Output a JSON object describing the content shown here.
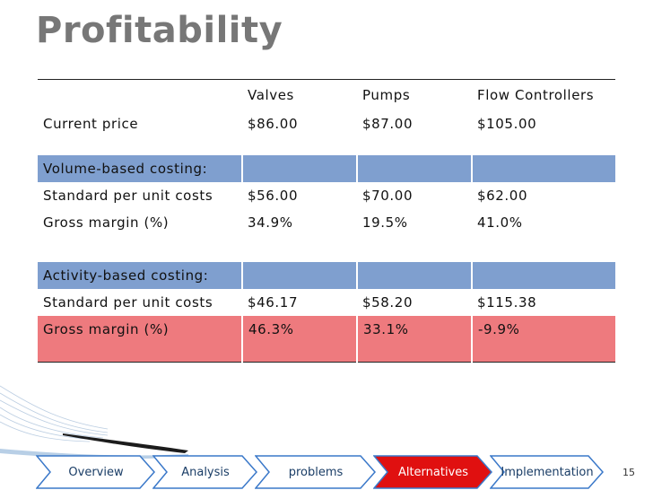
{
  "slide": {
    "title": "Profitability",
    "page_number": "15"
  },
  "table": {
    "header": [
      "",
      "Valves",
      "Pumps",
      "Flow Controllers"
    ],
    "current_price": [
      "Current price",
      "$86.00",
      "$87.00",
      "$105.00"
    ],
    "volume_section": [
      "Volume-based costing:",
      "",
      "",
      ""
    ],
    "volume_costs": [
      "Standard per unit costs",
      "$56.00",
      "$70.00",
      "$62.00"
    ],
    "volume_margin": [
      "Gross margin (%)",
      "34.9%",
      "19.5%",
      "41.0%"
    ],
    "activity_section": [
      "Activity-based costing:",
      "",
      "",
      ""
    ],
    "activity_costs": [
      "Standard per unit costs",
      "$46.17",
      "$58.20",
      "$115.38"
    ],
    "activity_margin": [
      "Gross margin (%)",
      "46.3%",
      "33.1%",
      "-9.9%"
    ]
  },
  "nav": {
    "items": [
      {
        "label": "Overview",
        "active": false
      },
      {
        "label": "Analysis",
        "active": false
      },
      {
        "label": "problems",
        "active": false
      },
      {
        "label": "Alternatives",
        "active": true
      },
      {
        "label": "Implementation",
        "active": false
      }
    ]
  },
  "colors": {
    "title": "#777777",
    "highlight_blue": "#7f9fcf",
    "highlight_red": "#ee7a7e",
    "nav_active": "#e01010",
    "nav_border": "#3a78c9"
  }
}
